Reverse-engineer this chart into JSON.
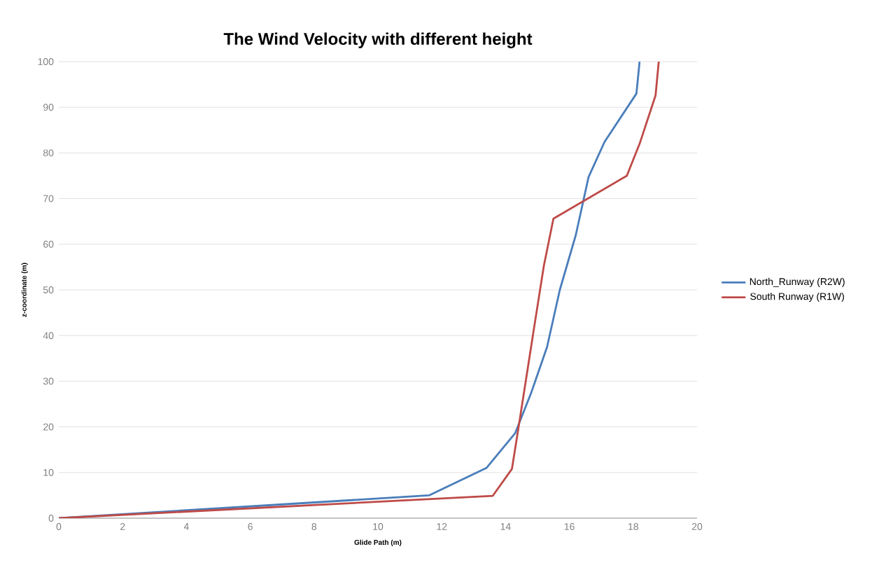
{
  "chart_data": {
    "type": "line",
    "title": "The Wind Velocity with different height",
    "xlabel": "Glide Path (m)",
    "ylabel": "z-coordinate (m)",
    "xlim": [
      0,
      20
    ],
    "xticks": [
      0,
      2,
      4,
      6,
      8,
      10,
      12,
      14,
      16,
      18,
      20
    ],
    "ylim": [
      0,
      100
    ],
    "yticks": [
      0,
      10,
      20,
      30,
      40,
      50,
      60,
      70,
      80,
      90,
      100
    ],
    "grid": "y",
    "legend": "right",
    "marker": "none",
    "series": [
      {
        "name": "North_Runway (R2W)",
        "color": "#4a7ebb",
        "x": [
          0,
          11.6,
          13.4,
          14.3,
          14.8,
          15.3,
          15.7,
          16.2,
          16.6,
          17.1,
          18.1,
          18.2
        ],
        "values": [
          0,
          5,
          11,
          18.6,
          27.4,
          37.5,
          50,
          62,
          74.7,
          82.4,
          93,
          100
        ]
      },
      {
        "name": "South Runway (R1W)",
        "color": "#be4b48",
        "x": [
          0,
          13.6,
          14.2,
          14.4,
          14.9,
          15.2,
          15.5,
          17.8,
          18.2,
          18.7,
          18.8
        ],
        "values": [
          0,
          4.9,
          10.8,
          19.6,
          42,
          55.3,
          65.6,
          75,
          82,
          92.6,
          100
        ]
      }
    ]
  }
}
